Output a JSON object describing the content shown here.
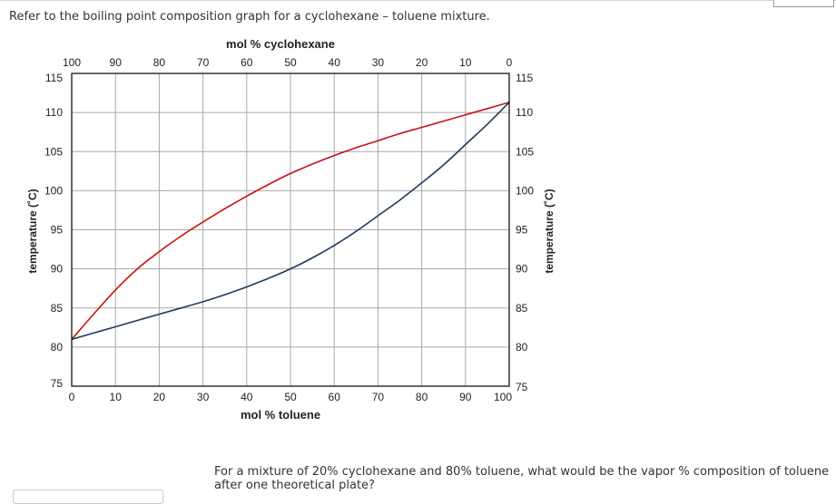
{
  "question": {
    "intro": "Refer to the boiling point composition graph for a cyclohexane – toluene mixture.",
    "prompt": "For a mixture of 20% cyclohexane and 80% toluene, what would be the vapor % composition of toluene after one theoretical plate?"
  },
  "colors": {
    "vapor_curve": "#cc1111",
    "liquid_curve": "#1f3a60",
    "grid": "#a8a8a8",
    "frame": "#000000"
  },
  "chart_data": {
    "type": "line",
    "title": "",
    "top_axis_label": "mol % cyclohexane",
    "xlabel": "mol % toluene",
    "ylabel": "temperature (˚C)",
    "ylabel_right": "temperature (˚C)",
    "xlim": [
      0,
      100
    ],
    "ylim": [
      75,
      115
    ],
    "x_ticks": [
      "0",
      "10",
      "20",
      "30",
      "40",
      "50",
      "60",
      "70",
      "80",
      "90",
      "100"
    ],
    "top_ticks": [
      "100",
      "90",
      "80",
      "70",
      "60",
      "50",
      "40",
      "30",
      "20",
      "10",
      "0"
    ],
    "y_ticks": [
      "75",
      "80",
      "85",
      "90",
      "95",
      "100",
      "105",
      "110",
      "115"
    ],
    "grid": true,
    "series": [
      {
        "x": [
          0,
          5,
          10,
          15,
          20,
          25,
          30,
          35,
          40,
          45,
          50,
          55,
          60,
          65,
          70,
          75,
          80,
          85,
          90,
          95,
          100
        ],
        "y": [
          81,
          84.2,
          87.3,
          90,
          92.2,
          94.2,
          96,
          97.7,
          99.3,
          100.8,
          102.2,
          103.4,
          104.5,
          105.5,
          106.4,
          107.3,
          108.1,
          108.9,
          109.7,
          110.5,
          111.3
        ]
      },
      {
        "x": [
          0,
          5,
          10,
          15,
          20,
          25,
          30,
          35,
          40,
          45,
          50,
          55,
          60,
          65,
          70,
          75,
          80,
          85,
          90,
          95,
          100
        ],
        "y": [
          81,
          81.8,
          82.6,
          83.4,
          84.2,
          85,
          85.8,
          86.7,
          87.7,
          88.8,
          90,
          91.4,
          93,
          94.8,
          96.8,
          98.8,
          101,
          103.3,
          105.9,
          108.5,
          111.3
        ]
      }
    ]
  }
}
